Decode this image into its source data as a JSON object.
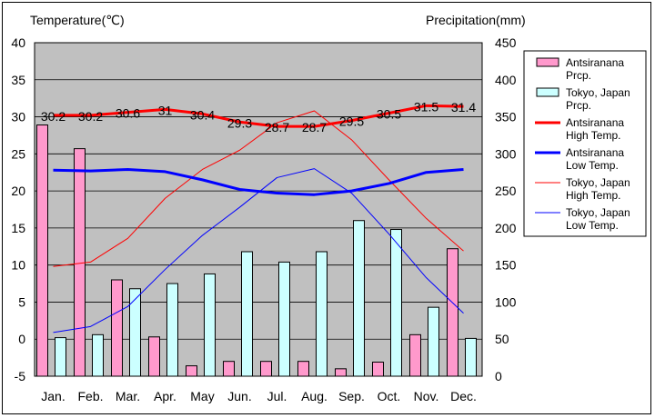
{
  "chart_data": {
    "type": "bar",
    "left_axis_title": "Temperature(℃)",
    "right_axis_title": "Precipitation(mm)",
    "categories": [
      "Jan.",
      "Feb.",
      "Mar.",
      "Apr.",
      "May",
      "Jun.",
      "Jul.",
      "Aug.",
      "Sep.",
      "Oct.",
      "Nov.",
      "Dec."
    ],
    "temp_range": [
      -5,
      40
    ],
    "temp_ticks": [
      -5,
      0,
      5,
      10,
      15,
      20,
      25,
      30,
      35,
      40
    ],
    "prcp_range": [
      0,
      450
    ],
    "prcp_ticks": [
      0,
      50,
      100,
      150,
      200,
      250,
      300,
      350,
      400,
      450
    ],
    "grid": true,
    "legend_position": "right",
    "plot_background": "#c0c0c0",
    "series": [
      {
        "name_lines": [
          "Antsiranana",
          "Prcp."
        ],
        "kind": "bar",
        "axis": "right",
        "color": "#ff99cc",
        "values": [
          339,
          307,
          130,
          53,
          14,
          20,
          20,
          20,
          10,
          19,
          56,
          172
        ]
      },
      {
        "name_lines": [
          "Tokyo, Japan",
          "Prcp."
        ],
        "kind": "bar",
        "axis": "right",
        "color": "#ccffff",
        "values": [
          52,
          56,
          118,
          125,
          138,
          168,
          154,
          168,
          210,
          198,
          93,
          51
        ]
      },
      {
        "name_lines": [
          "Antsiranana",
          "High Temp."
        ],
        "kind": "line",
        "axis": "left",
        "color": "#ff0000",
        "width": 3,
        "values": [
          30.2,
          30.2,
          30.6,
          31,
          30.4,
          29.3,
          28.7,
          28.7,
          29.5,
          30.5,
          31.5,
          31.4
        ],
        "labels": [
          "30.2",
          "30.2",
          "30.6",
          "31",
          "30.4",
          "29.3",
          "28.7",
          "28.7",
          "29.5",
          "30.5",
          "31.5",
          "31.4"
        ]
      },
      {
        "name_lines": [
          "Antsiranana",
          "Low Temp."
        ],
        "kind": "line",
        "axis": "left",
        "color": "#0000ff",
        "width": 3,
        "values": [
          22.8,
          22.7,
          22.9,
          22.6,
          21.5,
          20.2,
          19.7,
          19.5,
          20.0,
          21.0,
          22.5,
          22.9
        ]
      },
      {
        "name_lines": [
          "Tokyo, Japan",
          "High Temp."
        ],
        "kind": "line",
        "axis": "left",
        "color": "#ff0000",
        "width": 1,
        "values": [
          9.8,
          10.4,
          13.6,
          19.0,
          22.9,
          25.5,
          29.2,
          30.8,
          26.9,
          21.5,
          16.3,
          11.9
        ]
      },
      {
        "name_lines": [
          "Tokyo, Japan",
          "Low Temp."
        ],
        "kind": "line",
        "axis": "left",
        "color": "#0000ff",
        "width": 1,
        "values": [
          0.9,
          1.7,
          4.4,
          9.4,
          14.0,
          17.8,
          21.8,
          23.0,
          19.7,
          14.2,
          8.3,
          3.5
        ]
      }
    ]
  }
}
